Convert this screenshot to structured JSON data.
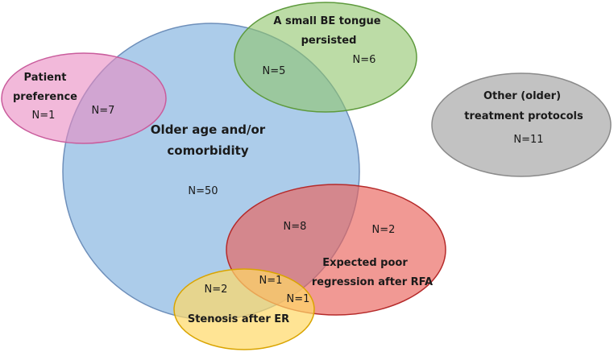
{
  "sets": [
    {
      "id": "older_age",
      "lines": [
        "Older age and/or",
        "comorbidity"
      ],
      "count": "N=50",
      "color": "#9dc3e6",
      "stroke": "#6e8fba"
    },
    {
      "id": "patient_pref",
      "lines": [
        "Patient",
        "preference"
      ],
      "count": "N=1",
      "color": "#e98bc1",
      "stroke": "#c95c9c"
    },
    {
      "id": "be_tongue",
      "lines": [
        "A small BE tongue",
        "persisted"
      ],
      "count": "N=6",
      "color": "#8fc46b",
      "stroke": "#5e9a3d"
    },
    {
      "id": "other_protocols",
      "lines": [
        "Other (older)",
        "treatment protocols"
      ],
      "count": "N=11",
      "color": "#bfbfbf",
      "stroke": "#8a8a8a"
    },
    {
      "id": "poor_regression",
      "lines": [
        "Expected poor",
        "regression after RFA"
      ],
      "count": "N=2",
      "color": "#e9635a",
      "stroke": "#b52a2a"
    },
    {
      "id": "stenosis",
      "lines": [
        "Stenosis after ER"
      ],
      "count": "",
      "color": "#ffd966",
      "stroke": "#d9a400"
    }
  ],
  "overlaps": {
    "older_patient": "N=7",
    "older_tongue": "N=5",
    "older_poor": "N=8",
    "older_stenosis": "N=2",
    "older_poor_stenosis": "N=1",
    "poor_stenosis": "N=1"
  }
}
